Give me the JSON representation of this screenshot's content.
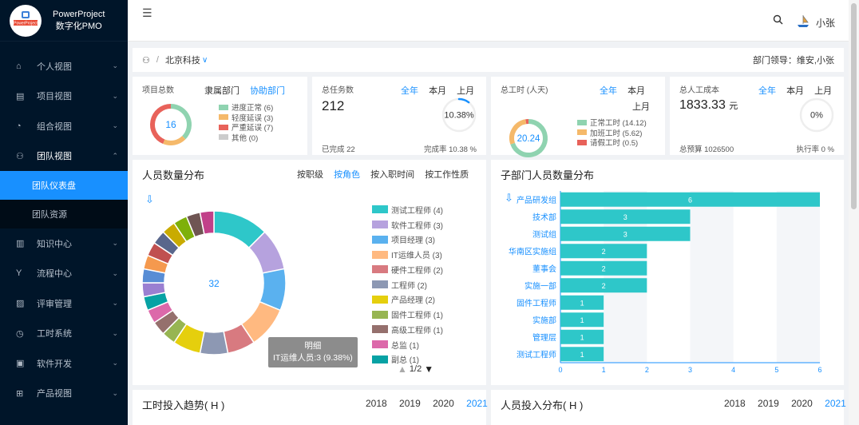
{
  "app": {
    "name_line1": "PowerProject",
    "name_line2": "数字化PMO",
    "logo_text": "PowerProject"
  },
  "sidebar": {
    "items": [
      {
        "label": "个人视图",
        "icon": "home-icon"
      },
      {
        "label": "项目视图",
        "icon": "project-icon"
      },
      {
        "label": "组合视图",
        "icon": "dashboard-icon"
      },
      {
        "label": "团队视图",
        "icon": "team-icon"
      },
      {
        "label": "知识中心",
        "icon": "book-icon"
      },
      {
        "label": "流程中心",
        "icon": "flow-icon"
      },
      {
        "label": "评审管理",
        "icon": "review-icon"
      },
      {
        "label": "工时系统",
        "icon": "clock-icon"
      },
      {
        "label": "软件开发",
        "icon": "code-icon"
      },
      {
        "label": "产品视图",
        "icon": "grid-icon"
      }
    ],
    "subitems": [
      {
        "label": "团队仪表盘",
        "active": true
      },
      {
        "label": "团队资源",
        "active": false
      }
    ]
  },
  "header": {
    "user": "小张"
  },
  "breadcrumb": {
    "org": "北京科技",
    "lead": "部门领导：维安,小张"
  },
  "stats": {
    "projects": {
      "title": "项目总数",
      "tab1": "隶属部门",
      "tab2": "协助部门",
      "total": "16",
      "legend": [
        {
          "label": "进度正常 (6)",
          "value": 6,
          "color": "#8fd3b0"
        },
        {
          "label": "轻度延误 (3)",
          "value": 3,
          "color": "#f5b96a"
        },
        {
          "label": "严重延误 (7)",
          "value": 7,
          "color": "#e8625a"
        },
        {
          "label": "其他 (0)",
          "value": 0,
          "color": "#cccccc"
        }
      ]
    },
    "tasks": {
      "title": "总任务数",
      "tabs": [
        "全年",
        "本月",
        "上月"
      ],
      "active_tab": "全年",
      "total": "212",
      "percent_label": "10.38%",
      "percent": 10.38,
      "done": "已完成 22",
      "rate": "完成率 10.38 %"
    },
    "hours": {
      "title": "总工时 (人天)",
      "tabs": [
        "全年",
        "本月",
        "上月"
      ],
      "active_tab": "全年",
      "total": "20.24",
      "legend": [
        {
          "label": "正常工时 (14.12)",
          "value": 14.12,
          "color": "#8fd3b0"
        },
        {
          "label": "加班工时 (5.62)",
          "value": 5.62,
          "color": "#f5b96a"
        },
        {
          "label": "请假工时 (0.5)",
          "value": 0.5,
          "color": "#e8625a"
        }
      ]
    },
    "cost": {
      "title": "总人工成本",
      "tabs": [
        "全年",
        "本月",
        "上月"
      ],
      "active_tab": "全年",
      "total": "1833.33",
      "unit": "元",
      "percent_label": "0%",
      "percent": 0,
      "budget": "总预算 1026500",
      "rate": "执行率 0 %"
    }
  },
  "people": {
    "title": "人员数量分布",
    "tabs": [
      "按职级",
      "按角色",
      "按入职时间",
      "按工作性质"
    ],
    "active_tab": "按角色",
    "total": "32",
    "page": "1/2",
    "tooltip_title": "明细",
    "tooltip_text": "IT运维人员:3 (9.38%)",
    "legend": [
      {
        "label": "测试工程师 (4)",
        "value": 4,
        "color": "#2ec7c9"
      },
      {
        "label": "软件工程师 (3)",
        "value": 3,
        "color": "#b6a2de"
      },
      {
        "label": "项目经理 (3)",
        "value": 3,
        "color": "#5ab1ef"
      },
      {
        "label": "IT运维人员 (3)",
        "value": 3,
        "color": "#ffb980"
      },
      {
        "label": "硬件工程师 (2)",
        "value": 2,
        "color": "#d87a80"
      },
      {
        "label": "工程师 (2)",
        "value": 2,
        "color": "#8d98b3"
      },
      {
        "label": "产品经理 (2)",
        "value": 2,
        "color": "#e5cf0d"
      },
      {
        "label": "固件工程师 (1)",
        "value": 1,
        "color": "#97b552"
      },
      {
        "label": "高级工程师 (1)",
        "value": 1,
        "color": "#95706d"
      },
      {
        "label": "总监 (1)",
        "value": 1,
        "color": "#dc69aa"
      },
      {
        "label": "副总 (1)",
        "value": 1,
        "color": "#07a2a4"
      }
    ],
    "extra_slices": [
      {
        "value": 1,
        "color": "#9a7fd1"
      },
      {
        "value": 1,
        "color": "#588dd5"
      },
      {
        "value": 1,
        "color": "#f5994e"
      },
      {
        "value": 1,
        "color": "#c05050"
      },
      {
        "value": 1,
        "color": "#59678c"
      },
      {
        "value": 1,
        "color": "#c9ab00"
      },
      {
        "value": 1,
        "color": "#7eb00a"
      },
      {
        "value": 1,
        "color": "#6f5553"
      },
      {
        "value": 1,
        "color": "#c14089"
      }
    ]
  },
  "chart_data": {
    "type": "bar",
    "orientation": "horizontal",
    "title": "子部门人员数量分布",
    "categories": [
      "产品研发组",
      "技术部",
      "测试组",
      "华南区实施组",
      "董事会",
      "实施一部",
      "固件工程师",
      "实施部",
      "管理层",
      "测试工程师"
    ],
    "values": [
      6,
      3,
      3,
      2,
      2,
      2,
      1,
      1,
      1,
      1
    ],
    "xlim": [
      0,
      6
    ],
    "xticks": [
      0,
      1,
      2,
      3,
      4,
      5,
      6
    ],
    "bar_color": "#2ec7c9"
  },
  "trend": {
    "title": "工时投入趋势( H )",
    "years": [
      "2018",
      "2019",
      "2020",
      "2021"
    ],
    "active": "2021"
  },
  "distribution": {
    "title": "人员投入分布( H )",
    "years": [
      "2018",
      "2019",
      "2020",
      "2021"
    ],
    "active": "2021"
  }
}
